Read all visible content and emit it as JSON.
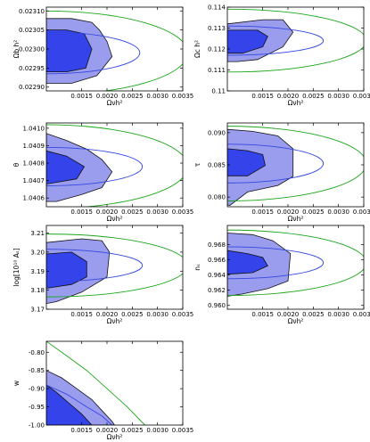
{
  "chart_data": [
    {
      "type": "contour",
      "xlabel": "Ωνh²",
      "ylabel": "Ωb h²",
      "xlim": [
        0.0008,
        0.0035
      ],
      "ylim": [
        0.02289,
        0.02311
      ],
      "xticks": [
        {
          "v": 0.0015,
          "label": "0.0015"
        },
        {
          "v": 0.002,
          "label": "0.0020"
        },
        {
          "v": 0.0025,
          "label": "0.0025"
        },
        {
          "v": 0.003,
          "label": "0.0030"
        },
        {
          "v": 0.0035,
          "label": "0.0035"
        }
      ],
      "yticks": [
        {
          "v": 0.0229,
          "label": "0.02290"
        },
        {
          "v": 0.02295,
          "label": "0.02295"
        },
        {
          "v": 0.023,
          "label": "0.02300"
        },
        {
          "v": 0.02305,
          "label": "0.02305"
        },
        {
          "v": 0.0231,
          "label": "0.02310"
        }
      ],
      "inner": [
        [
          0.0008,
          0.02305
        ],
        [
          0.0012,
          0.02305
        ],
        [
          0.00155,
          0.02304
        ],
        [
          0.0017,
          0.023
        ],
        [
          0.00158,
          0.02295
        ],
        [
          0.0012,
          0.02294
        ],
        [
          0.0008,
          0.02294
        ]
      ],
      "outer": [
        [
          0.0008,
          0.02308
        ],
        [
          0.0013,
          0.02308
        ],
        [
          0.0017,
          0.02307
        ],
        [
          0.00185,
          0.02305
        ],
        [
          0.002,
          0.02302
        ],
        [
          0.0021,
          0.02298
        ],
        [
          0.0018,
          0.02293
        ],
        [
          0.0013,
          0.02291
        ],
        [
          0.0008,
          0.02291
        ]
      ],
      "blue_ellipse": {
        "cx": 0.0008,
        "cy": 0.02299,
        "rx": 0.00185,
        "ry": 5.5e-05
      },
      "green_ellipse": {
        "cx": 0.0008,
        "cy": 0.02299,
        "rx": 0.0028,
        "ry": 0.00011
      }
    },
    {
      "type": "contour",
      "xlabel": "Ωνh²",
      "ylabel": "Ωc h²",
      "xlim": [
        0.0008,
        0.0035
      ],
      "ylim": [
        0.11,
        0.114
      ],
      "xticks": [
        {
          "v": 0.0015,
          "label": "0.0015"
        },
        {
          "v": 0.002,
          "label": "0.0020"
        },
        {
          "v": 0.0025,
          "label": "0.0025"
        },
        {
          "v": 0.003,
          "label": "0.0030"
        },
        {
          "v": 0.0035,
          "label": "0.0035"
        }
      ],
      "yticks": [
        {
          "v": 0.11,
          "label": "0.11"
        },
        {
          "v": 0.111,
          "label": "0.111"
        },
        {
          "v": 0.112,
          "label": "0.112"
        },
        {
          "v": 0.113,
          "label": "0.113"
        },
        {
          "v": 0.114,
          "label": "0.114"
        }
      ],
      "inner": [
        [
          0.0008,
          0.1129
        ],
        [
          0.0014,
          0.1129
        ],
        [
          0.0016,
          0.1126
        ],
        [
          0.0015,
          0.1121
        ],
        [
          0.0011,
          0.1118
        ],
        [
          0.0008,
          0.1118
        ]
      ],
      "outer": [
        [
          0.0008,
          0.1132
        ],
        [
          0.0015,
          0.1134
        ],
        [
          0.0019,
          0.1134
        ],
        [
          0.0021,
          0.1128
        ],
        [
          0.0019,
          0.1121
        ],
        [
          0.0014,
          0.1115
        ],
        [
          0.001,
          0.1114
        ],
        [
          0.0008,
          0.1114
        ]
      ],
      "blue_ellipse": {
        "cx": 0.0008,
        "cy": 0.1124,
        "rx": 0.0019,
        "ry": 0.0007
      },
      "green_ellipse": {
        "cx": 0.0008,
        "cy": 0.1124,
        "rx": 0.00275,
        "ry": 0.0015
      }
    },
    {
      "type": "contour",
      "xlabel": "Ωνh²",
      "ylabel": "θ",
      "xlim": [
        0.0008,
        0.0035
      ],
      "ylim": [
        1.04055,
        1.04103
      ],
      "xticks": [
        {
          "v": 0.0015,
          "label": "0.0015"
        },
        {
          "v": 0.002,
          "label": "0.0020"
        },
        {
          "v": 0.0025,
          "label": "0.0025"
        },
        {
          "v": 0.003,
          "label": "0.0030"
        },
        {
          "v": 0.0035,
          "label": "0.0035"
        }
      ],
      "yticks": [
        {
          "v": 1.0406,
          "label": "1.0406"
        },
        {
          "v": 1.0407,
          "label": "1.0407"
        },
        {
          "v": 1.0408,
          "label": "1.0408"
        },
        {
          "v": 1.0409,
          "label": "1.0409"
        },
        {
          "v": 1.041,
          "label": "1.0410"
        }
      ],
      "inner": [
        [
          0.0008,
          1.04087
        ],
        [
          0.0012,
          1.04084
        ],
        [
          0.00155,
          1.04078
        ],
        [
          0.0014,
          1.04071
        ],
        [
          0.001,
          1.04069
        ],
        [
          0.0008,
          1.04068
        ]
      ],
      "outer": [
        [
          0.0008,
          1.04097
        ],
        [
          0.0012,
          1.04093
        ],
        [
          0.0016,
          1.04088
        ],
        [
          0.0019,
          1.04082
        ],
        [
          0.0021,
          1.04075
        ],
        [
          0.0019,
          1.04066
        ],
        [
          0.0015,
          1.04062
        ],
        [
          0.001,
          1.04058
        ],
        [
          0.0008,
          1.04058
        ]
      ],
      "blue_ellipse": {
        "cx": 0.0008,
        "cy": 1.04078,
        "rx": 0.0019,
        "ry": 0.00011
      },
      "green_ellipse": {
        "cx": 0.0008,
        "cy": 1.04078,
        "rx": 0.0028,
        "ry": 0.00024
      }
    },
    {
      "type": "contour",
      "xlabel": "Ωνh²",
      "ylabel": "τ",
      "xlim": [
        0.0008,
        0.0035
      ],
      "ylim": [
        0.0785,
        0.0915
      ],
      "xticks": [
        {
          "v": 0.0015,
          "label": "0.0015"
        },
        {
          "v": 0.002,
          "label": "0.0020"
        },
        {
          "v": 0.0025,
          "label": "0.0025"
        },
        {
          "v": 0.003,
          "label": "0.0030"
        },
        {
          "v": 0.0035,
          "label": "0.0035"
        }
      ],
      "yticks": [
        {
          "v": 0.08,
          "label": "0.080"
        },
        {
          "v": 0.085,
          "label": "0.085"
        },
        {
          "v": 0.09,
          "label": "0.090"
        }
      ],
      "inner": [
        [
          0.0008,
          0.0875
        ],
        [
          0.0012,
          0.0872
        ],
        [
          0.0015,
          0.0866
        ],
        [
          0.00155,
          0.0849
        ],
        [
          0.0012,
          0.0833
        ],
        [
          0.0008,
          0.0833
        ]
      ],
      "outer": [
        [
          0.0008,
          0.0905
        ],
        [
          0.0013,
          0.0902
        ],
        [
          0.0018,
          0.0895
        ],
        [
          0.0021,
          0.0875
        ],
        [
          0.0021,
          0.0832
        ],
        [
          0.0018,
          0.0818
        ],
        [
          0.0012,
          0.0808
        ],
        [
          0.00085,
          0.0787
        ],
        [
          0.0008,
          0.0788
        ]
      ],
      "blue_ellipse": {
        "cx": 0.0008,
        "cy": 0.0852,
        "rx": 0.0019,
        "ry": 0.003
      },
      "green_ellipse": {
        "cx": 0.0008,
        "cy": 0.0852,
        "rx": 0.00275,
        "ry": 0.0058
      }
    },
    {
      "type": "contour",
      "xlabel": "Ωνh²",
      "ylabel": "log[10¹⁰ Aₛ]",
      "xlim": [
        0.0008,
        0.0035
      ],
      "ylim": [
        3.17,
        3.214
      ],
      "xticks": [
        {
          "v": 0.0015,
          "label": "0.0015"
        },
        {
          "v": 0.002,
          "label": "0.0020"
        },
        {
          "v": 0.0025,
          "label": "0.0025"
        },
        {
          "v": 0.003,
          "label": "0.0030"
        },
        {
          "v": 0.0035,
          "label": "0.0035"
        }
      ],
      "yticks": [
        {
          "v": 3.17,
          "label": "3.17"
        },
        {
          "v": 3.18,
          "label": "3.18"
        },
        {
          "v": 3.19,
          "label": "3.19"
        },
        {
          "v": 3.2,
          "label": "3.20"
        },
        {
          "v": 3.21,
          "label": "3.21"
        }
      ],
      "inner": [
        [
          0.0008,
          3.199
        ],
        [
          0.0013,
          3.2
        ],
        [
          0.0016,
          3.195
        ],
        [
          0.0016,
          3.187
        ],
        [
          0.0013,
          3.183
        ],
        [
          0.0008,
          3.181
        ]
      ],
      "outer": [
        [
          0.0008,
          3.205
        ],
        [
          0.0015,
          3.207
        ],
        [
          0.0019,
          3.206
        ],
        [
          0.00205,
          3.2
        ],
        [
          0.002,
          3.187
        ],
        [
          0.0015,
          3.179
        ],
        [
          0.001,
          3.174
        ],
        [
          0.0008,
          3.173
        ]
      ],
      "blue_ellipse": {
        "cx": 0.0008,
        "cy": 3.193,
        "rx": 0.0019,
        "ry": 0.0085
      },
      "green_ellipse": {
        "cx": 0.0008,
        "cy": 3.193,
        "rx": 0.0028,
        "ry": 0.0165
      }
    },
    {
      "type": "contour",
      "xlabel": "Ωνh²",
      "ylabel": "nₛ",
      "xlim": [
        0.0008,
        0.0035
      ],
      "ylim": [
        0.9595,
        0.9705
      ],
      "xticks": [
        {
          "v": 0.0015,
          "label": "0.0015"
        },
        {
          "v": 0.002,
          "label": "0.0020"
        },
        {
          "v": 0.0025,
          "label": "0.0025"
        },
        {
          "v": 0.003,
          "label": "0.0030"
        },
        {
          "v": 0.0035,
          "label": "0.0035"
        }
      ],
      "yticks": [
        {
          "v": 0.96,
          "label": "0.960"
        },
        {
          "v": 0.962,
          "label": "0.962"
        },
        {
          "v": 0.964,
          "label": "0.964"
        },
        {
          "v": 0.966,
          "label": "0.966"
        },
        {
          "v": 0.968,
          "label": "0.968"
        }
      ],
      "inner": [
        [
          0.0008,
          0.9672
        ],
        [
          0.0012,
          0.9668
        ],
        [
          0.0015,
          0.9663
        ],
        [
          0.0016,
          0.9652
        ],
        [
          0.0013,
          0.9643
        ],
        [
          0.0008,
          0.9641
        ]
      ],
      "outer": [
        [
          0.0008,
          0.9695
        ],
        [
          0.0013,
          0.9693
        ],
        [
          0.0017,
          0.9685
        ],
        [
          0.00205,
          0.9668
        ],
        [
          0.002,
          0.9632
        ],
        [
          0.0016,
          0.9622
        ],
        [
          0.0011,
          0.9615
        ],
        [
          0.0008,
          0.9612
        ]
      ],
      "blue_ellipse": {
        "cx": 0.0008,
        "cy": 0.9656,
        "rx": 0.0019,
        "ry": 0.0021
      },
      "green_ellipse": {
        "cx": 0.0008,
        "cy": 0.9656,
        "rx": 0.00275,
        "ry": 0.0043
      }
    },
    {
      "type": "contour",
      "xlabel": "Ωνh²",
      "ylabel": "w",
      "xlim": [
        0.0008,
        0.0035
      ],
      "ylim": [
        -1.0,
        -0.77
      ],
      "xticks": [
        {
          "v": 0.0015,
          "label": "0.0015"
        },
        {
          "v": 0.002,
          "label": "0.0020"
        },
        {
          "v": 0.0025,
          "label": "0.0025"
        },
        {
          "v": 0.003,
          "label": "0.0030"
        },
        {
          "v": 0.0035,
          "label": "0.0035"
        }
      ],
      "yticks": [
        {
          "v": -1.0,
          "label": "-1.00"
        },
        {
          "v": -0.95,
          "label": "-0.95"
        },
        {
          "v": -0.9,
          "label": "-0.90"
        },
        {
          "v": -0.85,
          "label": "-0.85"
        },
        {
          "v": -0.8,
          "label": "-0.80"
        }
      ],
      "inner": [
        [
          0.0008,
          -0.89
        ],
        [
          0.001,
          -0.91
        ],
        [
          0.00125,
          -0.94
        ],
        [
          0.0015,
          -0.97
        ],
        [
          0.0017,
          -1.0
        ],
        [
          0.0008,
          -1.0
        ]
      ],
      "outer": [
        [
          0.0008,
          -0.85
        ],
        [
          0.0011,
          -0.87
        ],
        [
          0.0014,
          -0.9
        ],
        [
          0.0017,
          -0.93
        ],
        [
          0.0019,
          -0.96
        ],
        [
          0.0021,
          -0.99
        ],
        [
          0.00215,
          -1.0
        ],
        [
          0.0008,
          -1.0
        ]
      ],
      "blue_curve": [
        [
          0.0008,
          -0.89
        ],
        [
          0.0012,
          -0.915
        ],
        [
          0.0016,
          -0.95
        ],
        [
          0.0019,
          -0.975
        ],
        [
          0.0021,
          -1.0
        ]
      ],
      "green_curve": [
        [
          0.0008,
          -0.77
        ],
        [
          0.0012,
          -0.81
        ],
        [
          0.0016,
          -0.85
        ],
        [
          0.002,
          -0.9
        ],
        [
          0.0024,
          -0.95
        ],
        [
          0.00275,
          -1.0
        ]
      ]
    }
  ],
  "colors": {
    "outer_fill": "#9a9cee",
    "inner_fill": "#3443ea",
    "blue_line": "#3348e0",
    "green_line": "#1aa51a",
    "axis": "#000000"
  }
}
